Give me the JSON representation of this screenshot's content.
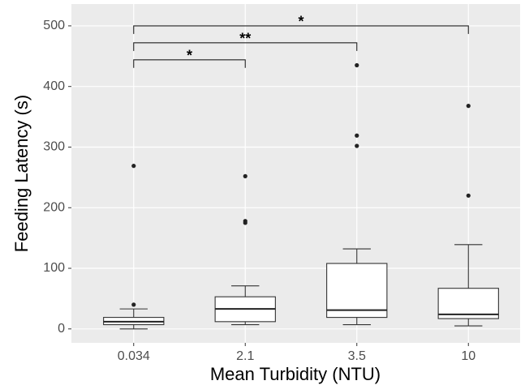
{
  "chart_data": {
    "type": "box",
    "x_label": "Mean Turbidity (NTU)",
    "y_label": "Feeding Latency (s)",
    "categories": [
      "0.034",
      "2.1",
      "3.5",
      "10"
    ],
    "boxes": [
      {
        "min": 0,
        "q1": 7,
        "median": 12,
        "q3": 19,
        "max": 33,
        "outliers": [
          40,
          269
        ]
      },
      {
        "min": 7,
        "q1": 12,
        "median": 33,
        "q3": 53,
        "max": 71,
        "outliers": [
          252,
          178,
          175
        ]
      },
      {
        "min": 7,
        "q1": 19,
        "median": 31,
        "q3": 108,
        "max": 132,
        "outliers": [
          302,
          319,
          435
        ]
      },
      {
        "min": 5,
        "q1": 17,
        "median": 24,
        "q3": 67,
        "max": 139,
        "outliers": [
          220,
          368
        ]
      }
    ],
    "annotations": [
      {
        "from": 0,
        "to": 1,
        "y": 444,
        "label": "*"
      },
      {
        "from": 0,
        "to": 2,
        "y": 472,
        "label": "**"
      },
      {
        "from": 0,
        "to": 3,
        "y": 500,
        "label": "*"
      }
    ],
    "ylim": [
      -23,
      536
    ],
    "yticks": [
      0,
      100,
      200,
      300,
      400,
      500
    ],
    "grid": true
  }
}
